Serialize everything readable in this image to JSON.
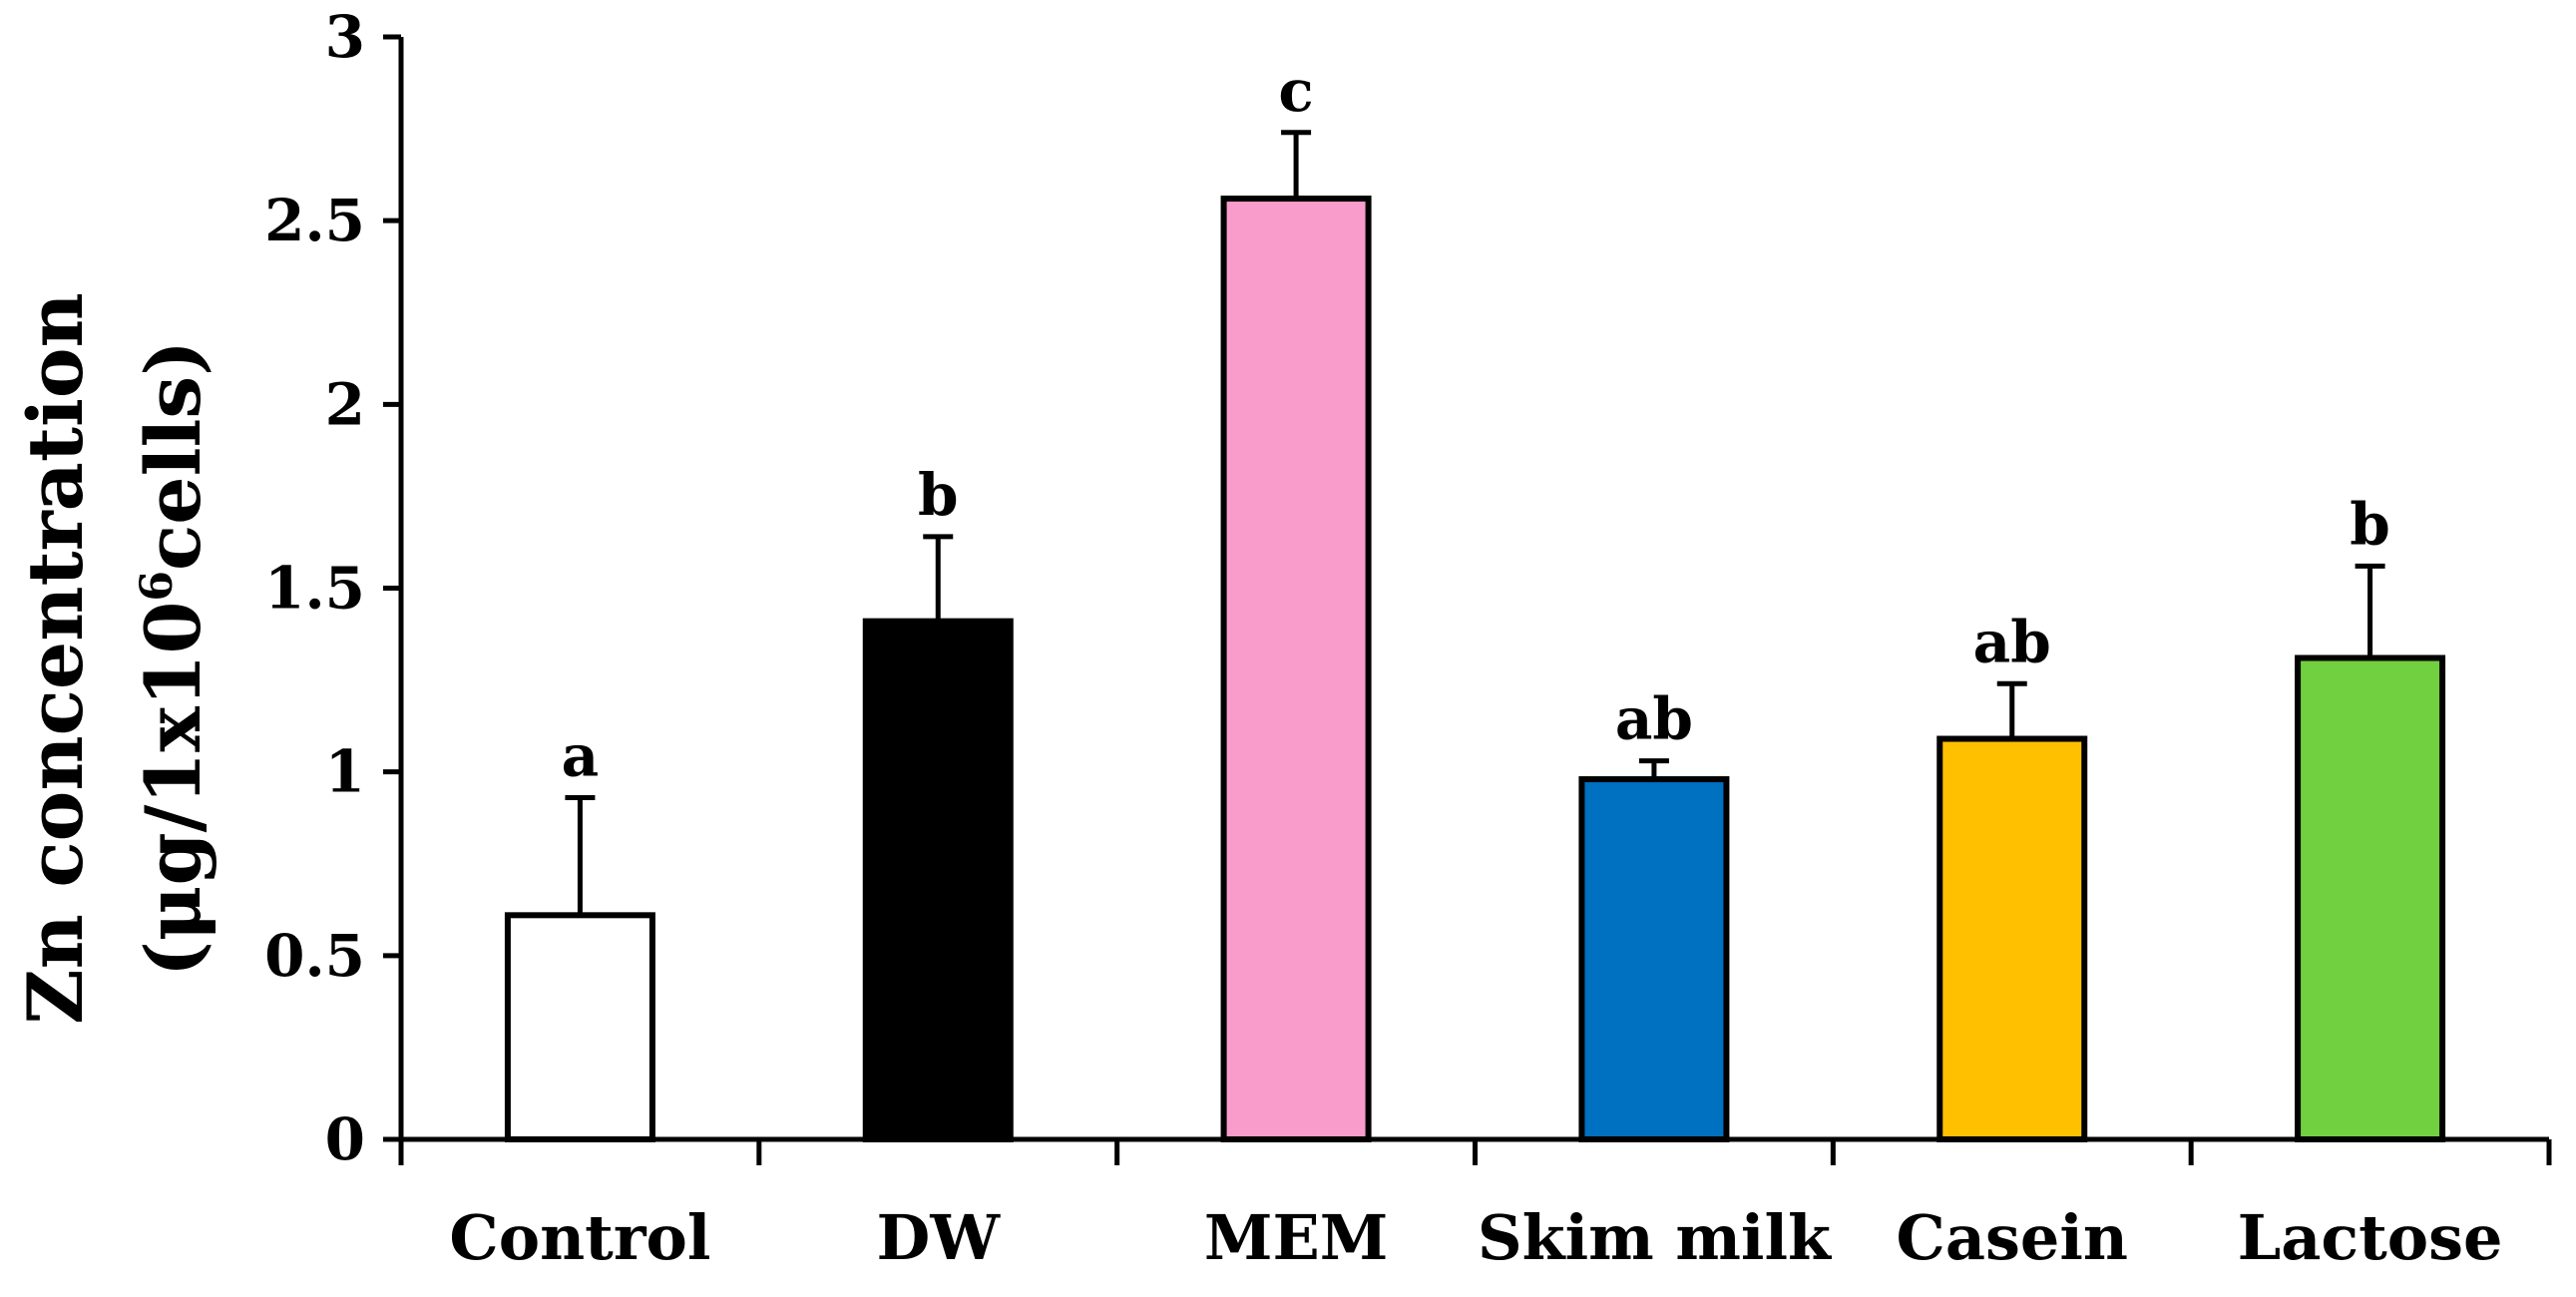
{
  "chart_data": {
    "type": "bar",
    "title": "",
    "xlabel": "",
    "ylabel_line1": "Zn concentration",
    "ylabel_line2_pre": "(μg/1x10",
    "ylabel_line2_sup": "6",
    "ylabel_line2_post": "cells)",
    "ylim": [
      0,
      3
    ],
    "yticks": [
      0,
      0.5,
      1,
      1.5,
      2,
      2.5,
      3
    ],
    "ytick_labels": [
      "0",
      "0.5",
      "1",
      "1.5",
      "2",
      "2.5",
      "3"
    ],
    "categories": [
      "Control",
      "DW",
      "MEM",
      "Skim milk",
      "Casein",
      "Lactose"
    ],
    "values": [
      0.61,
      1.41,
      2.56,
      0.98,
      1.09,
      1.31
    ],
    "errors": [
      0.32,
      0.23,
      0.18,
      0.05,
      0.15,
      0.25
    ],
    "significance": [
      "a",
      "b",
      "c",
      "ab",
      "ab",
      "b"
    ],
    "colors": [
      "#ffffff",
      "#000000",
      "#f99ccc",
      "#0070c0",
      "#ffc000",
      "#70d040"
    ],
    "grid": false,
    "legend": "none"
  }
}
